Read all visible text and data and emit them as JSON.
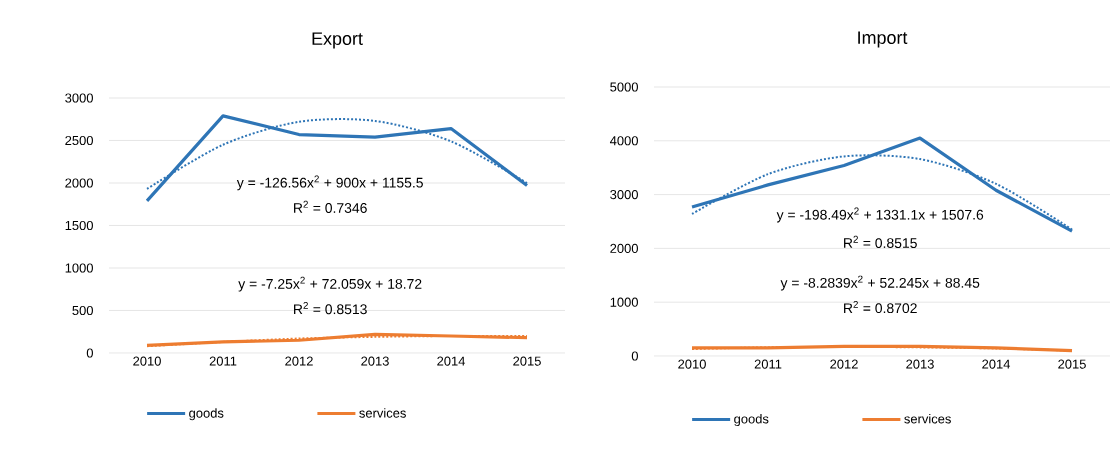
{
  "chart_data": [
    {
      "type": "line",
      "title": "Export",
      "categories": [
        "2010",
        "2011",
        "2012",
        "2013",
        "2014",
        "2015"
      ],
      "ylim": [
        0,
        3000
      ],
      "yticks": [
        0,
        500,
        1000,
        1500,
        2000,
        2500,
        3000
      ],
      "grid": "y",
      "legend": "bottom",
      "marker": "none",
      "series": [
        {
          "name": "goods",
          "color": "#2e75b6",
          "values": [
            1790,
            2790,
            2570,
            2540,
            2640,
            1970
          ]
        },
        {
          "name": "services",
          "color": "#ed7d31",
          "values": [
            90,
            130,
            150,
            220,
            200,
            180
          ]
        },
        {
          "color": "#2e75b6",
          "line_style": "dotted",
          "values": [
            1930,
            2450,
            2720,
            2730,
            2490,
            2000
          ]
        },
        {
          "color": "#ed7d31",
          "line_style": "dotted",
          "values": [
            80,
            130,
            170,
            190,
            200,
            200
          ]
        }
      ],
      "annotations": [
        "y = -126.56x$^{2}$ + 900x + 1155.5",
        "R$^{2}$ = 0.7346",
        "y = -7.25x$^{2}$ + 72.059x + 18.72",
        "R$^{2}$ = 0.8513"
      ]
    },
    {
      "type": "line",
      "title": "Import",
      "categories": [
        "2010",
        "2011",
        "2012",
        "2013",
        "2014",
        "2015"
      ],
      "ylim": [
        0,
        5000
      ],
      "yticks": [
        0,
        1000,
        2000,
        3000,
        4000,
        5000
      ],
      "grid": "y",
      "legend": "bottom",
      "marker": "none",
      "series": [
        {
          "name": "goods",
          "color": "#2e75b6",
          "values": [
            2770,
            3180,
            3540,
            4050,
            3080,
            2320
          ]
        },
        {
          "name": "services",
          "color": "#ed7d31",
          "values": [
            150,
            150,
            180,
            180,
            150,
            100
          ]
        },
        {
          "color": "#2e75b6",
          "line_style": "dotted",
          "values": [
            2640,
            3380,
            3710,
            3660,
            3200,
            2350
          ]
        },
        {
          "color": "#ed7d31",
          "line_style": "dotted",
          "values": [
            130,
            160,
            170,
            160,
            140,
            100
          ]
        }
      ],
      "annotations": [
        "y = -198.49x$^{2}$ + 1331.1x + 1507.6",
        "R$^{2}$ = 0.8515",
        "y = -8.2839x$^{2}$ + 52.245x + 88.45",
        "R$^{2}$ = 0.8702"
      ]
    }
  ]
}
